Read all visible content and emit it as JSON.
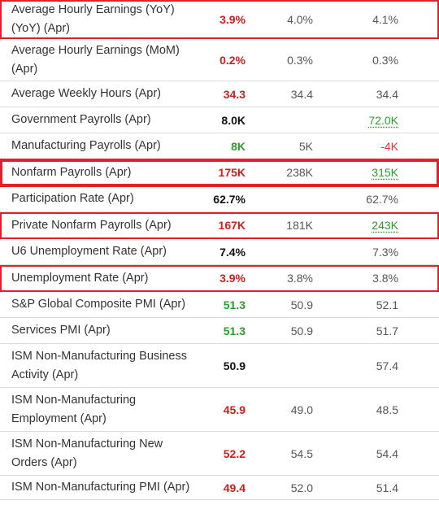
{
  "colors": {
    "highlight": "#e0212a",
    "negative": "#cc1f1f",
    "positive": "#2a9d2a",
    "neutral": "#111111"
  },
  "rows": [
    {
      "name": "Average Hourly Earnings (YoY) (YoY) (Apr)",
      "actual": "3.9%",
      "actual_color": "red",
      "forecast": "4.0%",
      "previous": "4.1%",
      "previous_style": "",
      "highlight": "thin"
    },
    {
      "name": "Average Hourly Earnings (MoM) (Apr)",
      "actual": "0.2%",
      "actual_color": "red",
      "forecast": "0.3%",
      "previous": "0.3%",
      "previous_style": "",
      "highlight": ""
    },
    {
      "name": "Average Weekly Hours (Apr)",
      "actual": "34.3",
      "actual_color": "red",
      "forecast": "34.4",
      "previous": "34.4",
      "previous_style": "",
      "highlight": ""
    },
    {
      "name": "Government Payrolls (Apr)",
      "actual": "8.0K",
      "actual_color": "black",
      "forecast": "",
      "previous": "72.0K",
      "previous_style": "green",
      "highlight": ""
    },
    {
      "name": "Manufacturing Payrolls (Apr)",
      "actual": "8K",
      "actual_color": "green",
      "forecast": "5K",
      "previous": "-4K",
      "previous_style": "red",
      "highlight": ""
    },
    {
      "name": "Nonfarm Payrolls (Apr)",
      "actual": "175K",
      "actual_color": "red",
      "forecast": "238K",
      "previous": "315K",
      "previous_style": "green",
      "highlight": "bold"
    },
    {
      "name": "Participation Rate (Apr)",
      "actual": "62.7%",
      "actual_color": "black",
      "forecast": "",
      "previous": "62.7%",
      "previous_style": "",
      "highlight": ""
    },
    {
      "name": "Private Nonfarm Payrolls (Apr)",
      "actual": "167K",
      "actual_color": "red",
      "forecast": "181K",
      "previous": "243K",
      "previous_style": "green",
      "highlight": "thin"
    },
    {
      "name": "U6 Unemployment Rate (Apr)",
      "actual": "7.4%",
      "actual_color": "black",
      "forecast": "",
      "previous": "7.3%",
      "previous_style": "",
      "highlight": ""
    },
    {
      "name": "Unemployment Rate (Apr)",
      "actual": "3.9%",
      "actual_color": "red",
      "forecast": "3.8%",
      "previous": "3.8%",
      "previous_style": "",
      "highlight": "thin"
    },
    {
      "name": "S&P Global Composite PMI (Apr)",
      "actual": "51.3",
      "actual_color": "green",
      "forecast": "50.9",
      "previous": "52.1",
      "previous_style": "",
      "highlight": ""
    },
    {
      "name": "Services PMI (Apr)",
      "actual": "51.3",
      "actual_color": "green",
      "forecast": "50.9",
      "previous": "51.7",
      "previous_style": "",
      "highlight": ""
    },
    {
      "name": "ISM Non-Manufacturing Business Activity (Apr)",
      "actual": "50.9",
      "actual_color": "black",
      "forecast": "",
      "previous": "57.4",
      "previous_style": "",
      "highlight": ""
    },
    {
      "name": "ISM Non-Manufacturing Employment (Apr)",
      "actual": "45.9",
      "actual_color": "red",
      "forecast": "49.0",
      "previous": "48.5",
      "previous_style": "",
      "highlight": ""
    },
    {
      "name": "ISM Non-Manufacturing New Orders (Apr)",
      "actual": "52.2",
      "actual_color": "red",
      "forecast": "54.5",
      "previous": "54.4",
      "previous_style": "",
      "highlight": ""
    },
    {
      "name": "ISM Non-Manufacturing PMI (Apr)",
      "actual": "49.4",
      "actual_color": "red",
      "forecast": "52.0",
      "previous": "51.4",
      "previous_style": "",
      "highlight": ""
    }
  ]
}
